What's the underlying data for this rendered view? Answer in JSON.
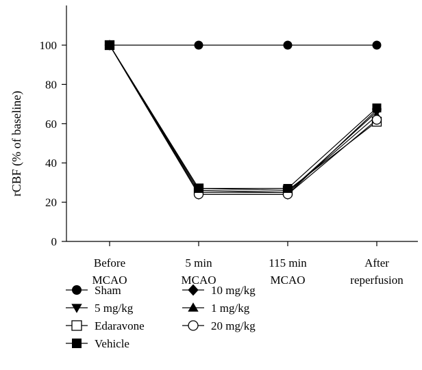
{
  "chart_data": {
    "type": "line",
    "title": "",
    "ylabel": "rCBF (% of baseline)",
    "xlabel": "",
    "ylim": [
      0,
      120
    ],
    "yticks": [
      0,
      20,
      40,
      60,
      80,
      100
    ],
    "grid": false,
    "legend_position": "bottom",
    "categories": [
      [
        "Before",
        "MCAO"
      ],
      [
        "5 min",
        "MCAO"
      ],
      [
        "115 min",
        "MCAO"
      ],
      [
        "After",
        "reperfusion"
      ]
    ],
    "series": [
      {
        "name": "Sham",
        "marker": "circle-filled",
        "values": [
          100,
          100,
          100,
          100
        ]
      },
      {
        "name": "10 mg/kg",
        "marker": "diamond-filled",
        "values": [
          100,
          24,
          24,
          67
        ]
      },
      {
        "name": "5 mg/kg",
        "marker": "triangle-down-filled",
        "values": [
          100,
          25,
          25,
          66
        ]
      },
      {
        "name": "1 mg/kg",
        "marker": "triangle-up-filled",
        "values": [
          100,
          26,
          25,
          64
        ]
      },
      {
        "name": "Edaravone",
        "marker": "square-open",
        "values": [
          100,
          27,
          26,
          61
        ]
      },
      {
        "name": "20 mg/kg",
        "marker": "circle-open",
        "values": [
          100,
          24,
          24,
          62
        ]
      },
      {
        "name": "Vehicle",
        "marker": "square-filled",
        "values": [
          100,
          27,
          27,
          68
        ]
      }
    ]
  }
}
